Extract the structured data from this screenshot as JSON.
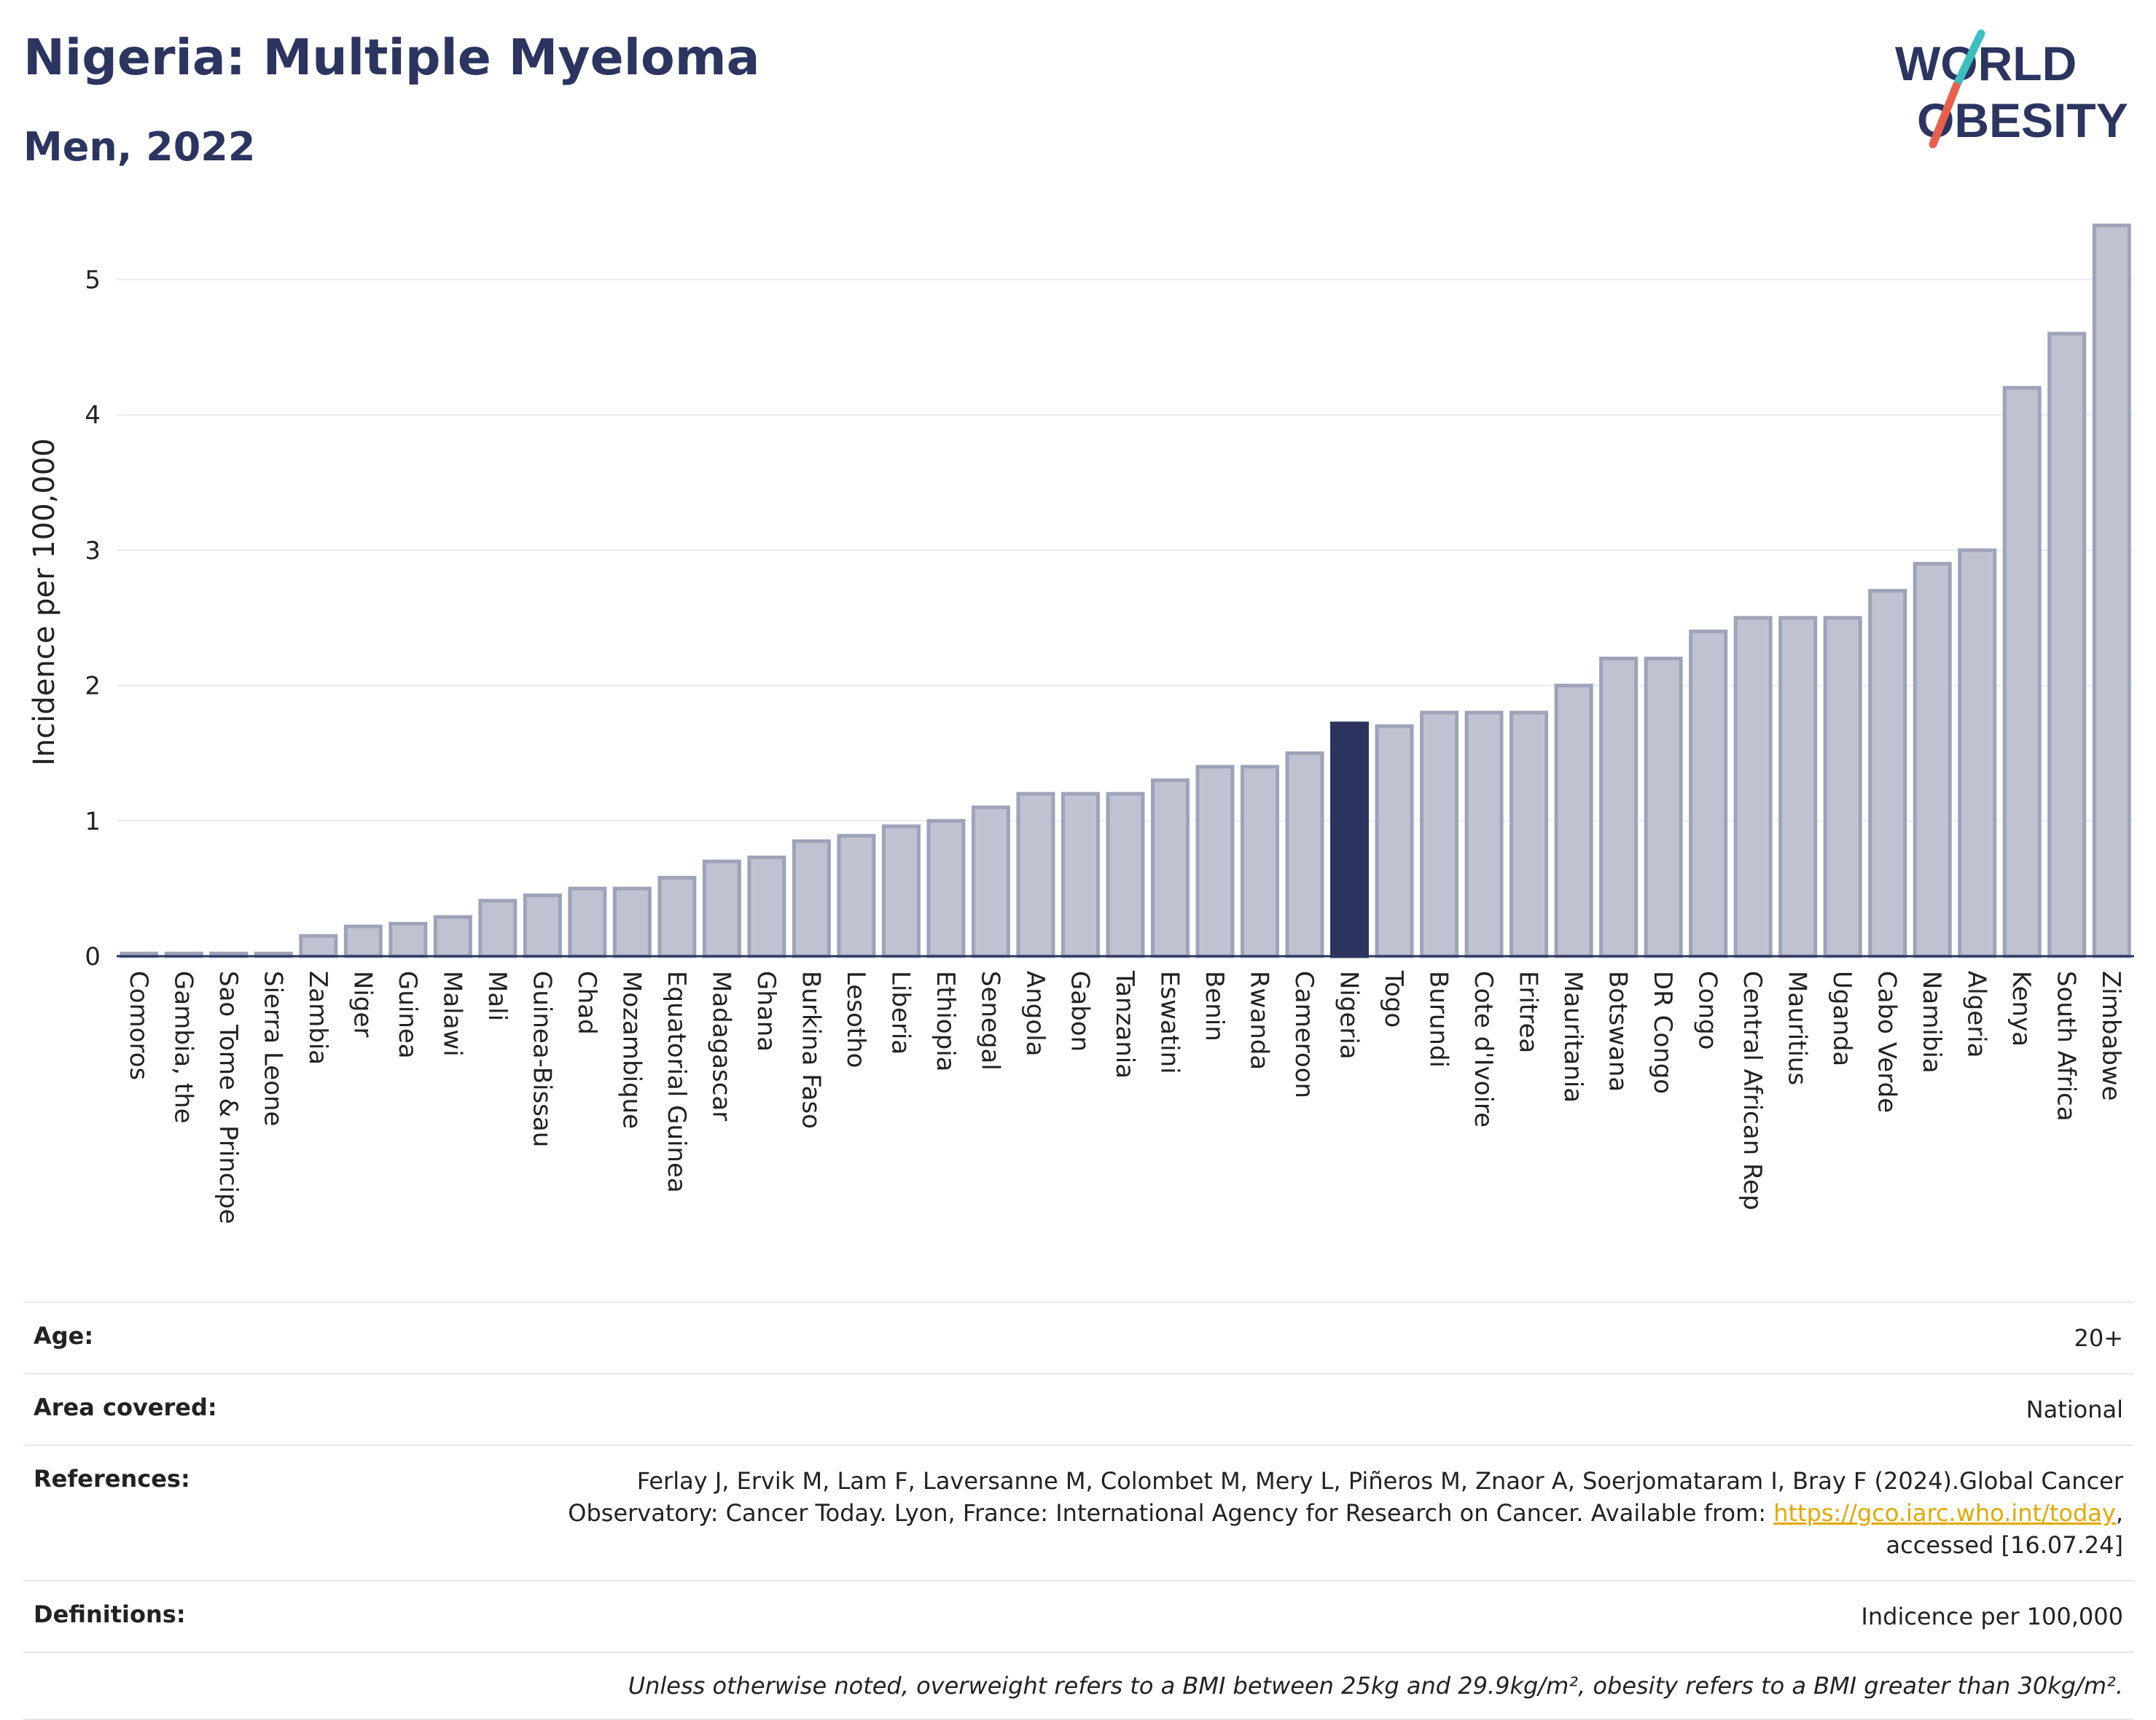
{
  "header": {
    "title": "Nigeria: Multiple Myeloma",
    "subtitle": "Men, 2022"
  },
  "logo": {
    "line1": "WORLD",
    "line2": "OBESITY",
    "colors": {
      "text": "#2b3560",
      "slash_top": "#3bbfbf",
      "slash_bottom": "#e8604c"
    }
  },
  "chart_data": {
    "type": "bar",
    "ylabel": "Incidence per 100,000",
    "ylim": [
      0,
      5.45
    ],
    "yticks": [
      0,
      1,
      2,
      3,
      4,
      5
    ],
    "grid": true,
    "highlight": "Nigeria",
    "colors": {
      "bar": "#bfc3d1",
      "bar_edge": "#9da3b8",
      "highlight": "#2b3560",
      "grid": "#e8eaf0",
      "axis": "#2b3560"
    },
    "categories": [
      "Comoros",
      "Gambia, the",
      "Sao Tome & Principe",
      "Sierra Leone",
      "Zambia",
      "Niger",
      "Guinea",
      "Malawi",
      "Mali",
      "Guinea-Bissau",
      "Chad",
      "Mozambique",
      "Equatorial Guinea",
      "Madagascar",
      "Ghana",
      "Burkina Faso",
      "Lesotho",
      "Liberia",
      "Ethiopia",
      "Senegal",
      "Angola",
      "Gabon",
      "Tanzania",
      "Eswatini",
      "Benin",
      "Rwanda",
      "Cameroon",
      "Nigeria",
      "Togo",
      "Burundi",
      "Cote d'Ivoire",
      "Eritrea",
      "Mauritania",
      "Botswana",
      "DR Congo",
      "Congo",
      "Central African Rep",
      "Mauritius",
      "Uganda",
      "Cabo Verde",
      "Namibia",
      "Algeria",
      "Kenya",
      "South Africa",
      "Zimbabwe"
    ],
    "values": [
      0.02,
      0.02,
      0.02,
      0.02,
      0.15,
      0.22,
      0.24,
      0.29,
      0.41,
      0.45,
      0.5,
      0.5,
      0.58,
      0.7,
      0.73,
      0.85,
      0.89,
      0.96,
      1.0,
      1.1,
      1.2,
      1.2,
      1.2,
      1.3,
      1.4,
      1.4,
      1.5,
      1.72,
      1.7,
      1.8,
      1.8,
      1.8,
      2.0,
      2.2,
      2.2,
      2.4,
      2.5,
      2.5,
      2.5,
      2.7,
      2.9,
      3.0,
      4.2,
      4.6,
      5.4
    ]
  },
  "meta": {
    "age_label": "Age:",
    "age_value": "20+",
    "area_label": "Area covered:",
    "area_value": "National",
    "references_label": "References:",
    "references_line1": "Ferlay J, Ervik M, Lam F, Laversanne M, Colombet M, Mery L, Piñeros M, Znaor A, Soerjomataram I, Bray F (2024).Global Cancer",
    "references_line2": "Observatory: Cancer Today. Lyon, France: International Agency for Research on Cancer. Available from: ",
    "references_link": "https://gco.iarc.who.int/today",
    "references_line2_end": ",",
    "references_line3": "accessed [16.07.24]",
    "definitions_label": "Definitions:",
    "definitions_value": "Indicence per 100,000",
    "note": "Unless otherwise noted, overweight refers to a BMI between 25kg and 29.9kg/m², obesity refers to a BMI greater than 30kg/m²."
  }
}
